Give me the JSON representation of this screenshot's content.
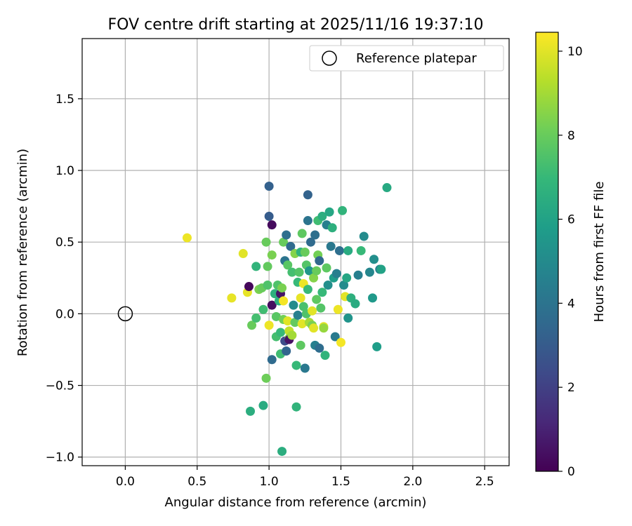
{
  "chart_data": {
    "type": "scatter",
    "title": "FOV centre drift starting at 2025/11/16 19:37:10",
    "xlabel": "Angular distance from reference (arcmin)",
    "ylabel": "Rotation from reference (arcmin)",
    "xlim": [
      -0.3,
      2.67
    ],
    "ylim": [
      -1.06,
      1.92
    ],
    "xticks": [
      0.0,
      0.5,
      1.0,
      1.5,
      2.0,
      2.5
    ],
    "xtick_labels": [
      "0.0",
      "0.5",
      "1.0",
      "1.5",
      "2.0",
      "2.5"
    ],
    "yticks": [
      -1.0,
      -0.5,
      0.0,
      0.5,
      1.0,
      1.5
    ],
    "ytick_labels": [
      "−1.0",
      "−0.5",
      "0.0",
      "0.5",
      "1.0",
      "1.5"
    ],
    "grid": true,
    "legend": {
      "position": "top-right",
      "entries": [
        "Reference platepar"
      ]
    },
    "reference_point": {
      "x": 0.0,
      "y": 0.0,
      "label": "Reference platepar"
    },
    "colorbar": {
      "label": "Hours from first FF file",
      "range": [
        0,
        10.45
      ],
      "ticks": [
        0,
        2,
        4,
        6,
        8,
        10
      ],
      "tick_labels": [
        "0",
        "2",
        "4",
        "6",
        "8",
        "10"
      ],
      "colormap_stops": [
        "#440154",
        "#482878",
        "#3e4a89",
        "#31688e",
        "#26828e",
        "#1f9e89",
        "#35b779",
        "#6ece58",
        "#b5de2b",
        "#fde725"
      ]
    },
    "series": [
      {
        "name": "Hours from first FF file",
        "points": [
          [
            0.43,
            0.53,
            10.2
          ],
          [
            0.74,
            0.11,
            10.1
          ],
          [
            0.82,
            0.42,
            10.0
          ],
          [
            0.85,
            0.15,
            10.1
          ],
          [
            0.86,
            0.19,
            0.2
          ],
          [
            0.88,
            -0.08,
            8.0
          ],
          [
            0.87,
            -0.68,
            6.5
          ],
          [
            0.91,
            -0.03,
            7.3
          ],
          [
            0.91,
            0.33,
            6.8
          ],
          [
            0.93,
            0.17,
            8.3
          ],
          [
            0.95,
            0.18,
            8.0
          ],
          [
            0.96,
            0.03,
            7.2
          ],
          [
            0.96,
            -0.64,
            6.4
          ],
          [
            0.98,
            -0.45,
            8.1
          ],
          [
            0.98,
            0.5,
            8.0
          ],
          [
            0.99,
            0.2,
            7.5
          ],
          [
            0.99,
            0.33,
            7.9
          ],
          [
            1.0,
            0.68,
            3.0
          ],
          [
            1.0,
            0.89,
            3.2
          ],
          [
            1.0,
            -0.08,
            10.2
          ],
          [
            1.02,
            0.41,
            8.3
          ],
          [
            1.02,
            0.62,
            0.3
          ],
          [
            1.02,
            0.06,
            0.4
          ],
          [
            1.02,
            -0.32,
            3.6
          ],
          [
            1.04,
            0.14,
            6.6
          ],
          [
            1.05,
            -0.02,
            7.7
          ],
          [
            1.05,
            -0.16,
            7.3
          ],
          [
            1.06,
            0.2,
            7.5
          ],
          [
            1.07,
            0.09,
            6.6
          ],
          [
            1.08,
            0.14,
            0.6
          ],
          [
            1.08,
            -0.13,
            7.0
          ],
          [
            1.08,
            -0.28,
            7.2
          ],
          [
            1.09,
            0.18,
            8.3
          ],
          [
            1.09,
            -0.96,
            6.5
          ],
          [
            1.1,
            0.5,
            8.0
          ],
          [
            1.1,
            0.09,
            10.3
          ],
          [
            1.1,
            -0.04,
            8.2
          ],
          [
            1.11,
            0.37,
            4.0
          ],
          [
            1.11,
            -0.19,
            2.4
          ],
          [
            1.12,
            0.55,
            3.8
          ],
          [
            1.12,
            -0.26,
            3.4
          ],
          [
            1.13,
            0.34,
            7.7
          ],
          [
            1.13,
            -0.05,
            10.0
          ],
          [
            1.14,
            -0.12,
            9.5
          ],
          [
            1.14,
            -0.17,
            8.5
          ],
          [
            1.14,
            -0.18,
            0.5
          ],
          [
            1.15,
            0.47,
            3.6
          ],
          [
            1.16,
            0.29,
            7.3
          ],
          [
            1.16,
            -0.15,
            9.0
          ],
          [
            1.17,
            0.06,
            5.0
          ],
          [
            1.18,
            0.42,
            8.5
          ],
          [
            1.18,
            -0.06,
            7.9
          ],
          [
            1.19,
            -0.36,
            7.0
          ],
          [
            1.19,
            -0.65,
            6.8
          ],
          [
            1.2,
            0.22,
            7.0
          ],
          [
            1.2,
            -0.01,
            4.5
          ],
          [
            1.21,
            0.29,
            7.6
          ],
          [
            1.22,
            0.43,
            6.8
          ],
          [
            1.22,
            0.11,
            10.1
          ],
          [
            1.22,
            -0.22,
            7.8
          ],
          [
            1.23,
            0.56,
            7.8
          ],
          [
            1.23,
            -0.07,
            10.0
          ],
          [
            1.24,
            0.21,
            10.2
          ],
          [
            1.24,
            0.05,
            7.4
          ],
          [
            1.25,
            0.43,
            8.0
          ],
          [
            1.25,
            -0.38,
            4.2
          ],
          [
            1.26,
            0.34,
            7.6
          ],
          [
            1.26,
            0.0,
            7.5
          ],
          [
            1.27,
            0.83,
            3.3
          ],
          [
            1.27,
            0.65,
            4.0
          ],
          [
            1.27,
            0.17,
            7.0
          ],
          [
            1.28,
            -0.06,
            9.0
          ],
          [
            1.28,
            0.3,
            5.5
          ],
          [
            1.29,
            0.5,
            3.6
          ],
          [
            1.3,
            0.02,
            10.0
          ],
          [
            1.3,
            -0.08,
            8.3
          ],
          [
            1.31,
            0.25,
            8.5
          ],
          [
            1.31,
            -0.1,
            10.0
          ],
          [
            1.32,
            0.55,
            3.8
          ],
          [
            1.32,
            -0.22,
            4.5
          ],
          [
            1.33,
            0.1,
            7.8
          ],
          [
            1.33,
            0.3,
            8.0
          ],
          [
            1.34,
            0.65,
            7.2
          ],
          [
            1.34,
            0.41,
            8.2
          ],
          [
            1.35,
            0.37,
            3.5
          ],
          [
            1.35,
            -0.24,
            3.7
          ],
          [
            1.36,
            0.04,
            7.6
          ],
          [
            1.37,
            0.15,
            7.0
          ],
          [
            1.37,
            0.68,
            6.5
          ],
          [
            1.38,
            -0.09,
            10.0
          ],
          [
            1.38,
            -0.1,
            8.8
          ],
          [
            1.39,
            -0.29,
            6.8
          ],
          [
            1.4,
            0.62,
            4.5
          ],
          [
            1.4,
            0.32,
            7.8
          ],
          [
            1.41,
            0.2,
            5.2
          ],
          [
            1.42,
            0.71,
            6.2
          ],
          [
            1.43,
            0.47,
            4.2
          ],
          [
            1.44,
            0.6,
            6.6
          ],
          [
            1.45,
            0.25,
            5.8
          ],
          [
            1.46,
            -0.16,
            4.3
          ],
          [
            1.47,
            0.28,
            4.5
          ],
          [
            1.48,
            0.03,
            10.2
          ],
          [
            1.49,
            0.44,
            3.8
          ],
          [
            1.5,
            -0.2,
            10.3
          ],
          [
            1.51,
            0.72,
            6.8
          ],
          [
            1.52,
            0.2,
            5.0
          ],
          [
            1.53,
            0.12,
            10.0
          ],
          [
            1.54,
            0.25,
            6.2
          ],
          [
            1.55,
            0.44,
            6.4
          ],
          [
            1.55,
            -0.03,
            5.4
          ],
          [
            1.57,
            0.11,
            6.6
          ],
          [
            1.6,
            0.07,
            6.4
          ],
          [
            1.62,
            0.27,
            4.5
          ],
          [
            1.64,
            0.44,
            7.0
          ],
          [
            1.66,
            0.54,
            5.0
          ],
          [
            1.7,
            0.29,
            4.8
          ],
          [
            1.72,
            0.11,
            5.6
          ],
          [
            1.73,
            0.38,
            5.2
          ],
          [
            1.75,
            -0.23,
            5.8
          ],
          [
            1.77,
            0.31,
            4.5
          ],
          [
            1.78,
            0.31,
            6.0
          ],
          [
            1.82,
            0.88,
            6.3
          ]
        ]
      }
    ]
  }
}
